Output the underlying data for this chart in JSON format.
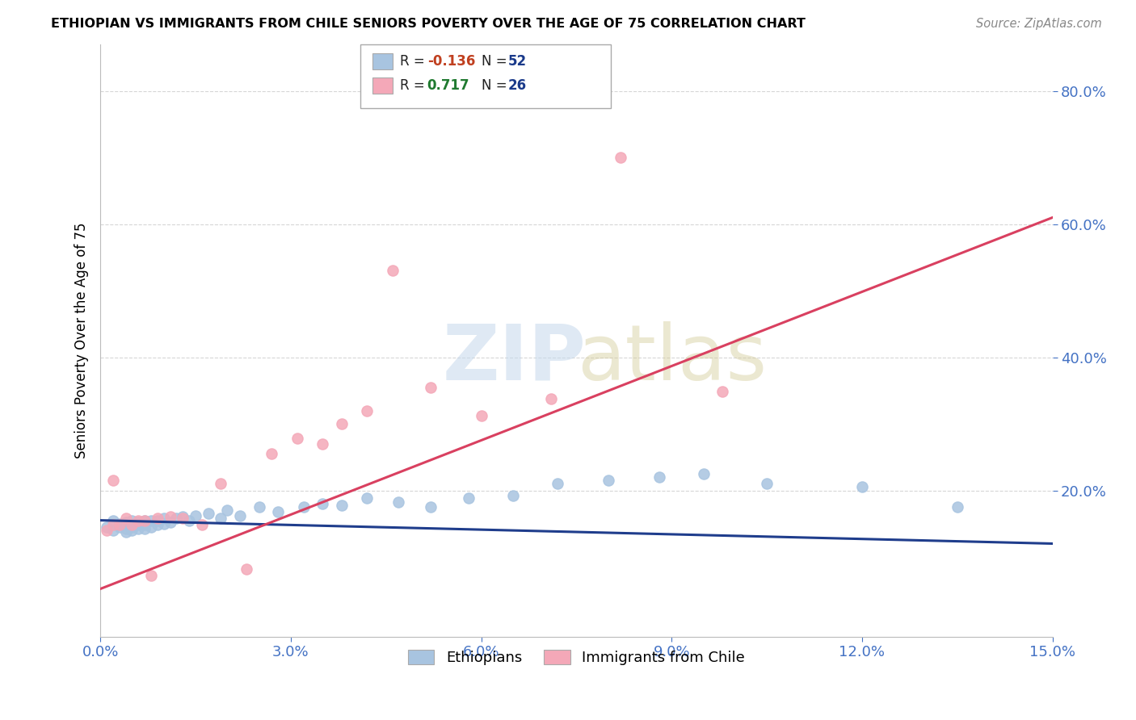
{
  "title": "ETHIOPIAN VS IMMIGRANTS FROM CHILE SENIORS POVERTY OVER THE AGE OF 75 CORRELATION CHART",
  "source": "Source: ZipAtlas.com",
  "ylabel": "Seniors Poverty Over the Age of 75",
  "xlim": [
    0.0,
    0.15
  ],
  "ylim": [
    -0.02,
    0.87
  ],
  "xticks": [
    0.0,
    0.03,
    0.06,
    0.09,
    0.12,
    0.15
  ],
  "xticklabels": [
    "0.0%",
    "3.0%",
    "6.0%",
    "9.0%",
    "12.0%",
    "15.0%"
  ],
  "yticks": [
    0.2,
    0.4,
    0.6,
    0.8
  ],
  "yticklabels": [
    "20.0%",
    "40.0%",
    "60.0%",
    "80.0%"
  ],
  "ethiopians_color": "#a8c4e0",
  "chile_color": "#f4a8b8",
  "trend1_color": "#1f3d8c",
  "trend2_color": "#d94060",
  "ethiopians_x": [
    0.001,
    0.002,
    0.002,
    0.003,
    0.003,
    0.003,
    0.004,
    0.004,
    0.004,
    0.004,
    0.005,
    0.005,
    0.005,
    0.005,
    0.006,
    0.006,
    0.006,
    0.007,
    0.007,
    0.007,
    0.008,
    0.008,
    0.009,
    0.009,
    0.01,
    0.01,
    0.011,
    0.012,
    0.013,
    0.014,
    0.015,
    0.017,
    0.019,
    0.02,
    0.022,
    0.025,
    0.028,
    0.032,
    0.035,
    0.038,
    0.042,
    0.047,
    0.052,
    0.058,
    0.065,
    0.072,
    0.08,
    0.088,
    0.095,
    0.105,
    0.12,
    0.135
  ],
  "ethiopians_y": [
    0.145,
    0.14,
    0.155,
    0.145,
    0.15,
    0.148,
    0.138,
    0.142,
    0.148,
    0.152,
    0.14,
    0.145,
    0.15,
    0.155,
    0.142,
    0.148,
    0.152,
    0.143,
    0.148,
    0.155,
    0.145,
    0.155,
    0.148,
    0.155,
    0.15,
    0.158,
    0.152,
    0.158,
    0.16,
    0.155,
    0.162,
    0.165,
    0.158,
    0.17,
    0.162,
    0.175,
    0.168,
    0.175,
    0.18,
    0.178,
    0.188,
    0.182,
    0.175,
    0.188,
    0.192,
    0.21,
    0.215,
    0.22,
    0.225,
    0.21,
    0.205,
    0.175
  ],
  "chile_x": [
    0.001,
    0.002,
    0.002,
    0.003,
    0.004,
    0.005,
    0.006,
    0.007,
    0.008,
    0.009,
    0.011,
    0.013,
    0.016,
    0.019,
    0.023,
    0.027,
    0.031,
    0.035,
    0.038,
    0.042,
    0.046,
    0.052,
    0.06,
    0.071,
    0.082,
    0.098
  ],
  "chile_y": [
    0.14,
    0.148,
    0.215,
    0.148,
    0.158,
    0.148,
    0.155,
    0.155,
    0.072,
    0.158,
    0.16,
    0.158,
    0.148,
    0.21,
    0.082,
    0.255,
    0.278,
    0.27,
    0.3,
    0.32,
    0.53,
    0.355,
    0.312,
    0.338,
    0.7,
    0.348
  ],
  "trend1_x0": 0.0,
  "trend1_x1": 0.15,
  "trend1_y0": 0.155,
  "trend1_y1": 0.12,
  "trend2_x0": 0.0,
  "trend2_x1": 0.15,
  "trend2_y0": 0.052,
  "trend2_y1": 0.61
}
